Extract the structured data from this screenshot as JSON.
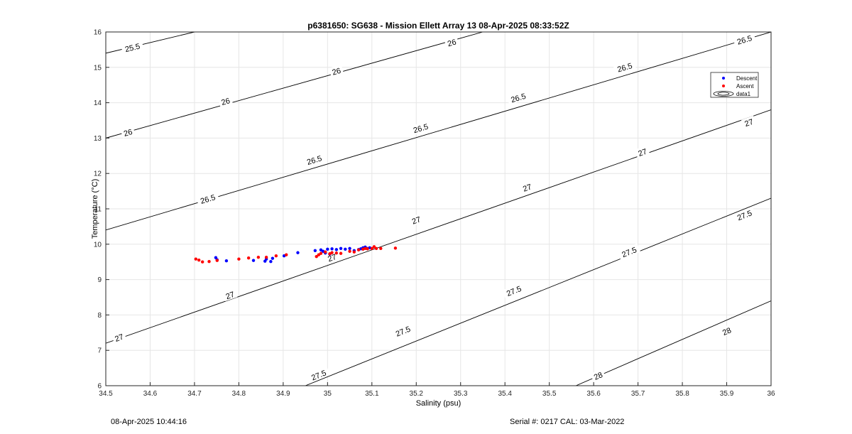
{
  "chart_data": {
    "type": "scatter",
    "title": "p6381650: SG638 - Mission Ellett Array 13 08-Apr-2025 08:33:52Z",
    "xlabel": "Salinity (psu)",
    "ylabel": "Temperature (°C)",
    "xlim": [
      34.5,
      36.0
    ],
    "ylim": [
      6,
      16
    ],
    "x_ticks": [
      "34.5",
      "34.6",
      "34.7",
      "34.8",
      "34.9",
      "35",
      "35.1",
      "35.2",
      "35.3",
      "35.4",
      "35.5",
      "35.6",
      "35.7",
      "35.8",
      "35.9",
      "36"
    ],
    "y_ticks": [
      "6",
      "7",
      "8",
      "9",
      "10",
      "11",
      "12",
      "13",
      "14",
      "15",
      "16"
    ],
    "grid": true,
    "legend_position": "top-right",
    "legend": [
      {
        "label": "Descent",
        "marker": "dot",
        "color": "#0000ff"
      },
      {
        "label": "Ascent",
        "marker": "dot",
        "color": "#ff0000"
      },
      {
        "label": "data1",
        "marker": "contour",
        "color": "#000000"
      }
    ],
    "series": [
      {
        "name": "Descent",
        "color": "#0000ff",
        "points": [
          [
            34.748,
            9.62
          ],
          [
            34.751,
            9.56
          ],
          [
            34.772,
            9.53
          ],
          [
            34.833,
            9.54
          ],
          [
            34.859,
            9.52
          ],
          [
            34.862,
            9.58
          ],
          [
            34.872,
            9.51
          ],
          [
            34.876,
            9.6
          ],
          [
            34.902,
            9.67
          ],
          [
            34.933,
            9.76
          ],
          [
            34.972,
            9.82
          ],
          [
            34.985,
            9.84
          ],
          [
            34.99,
            9.8
          ],
          [
            35.0,
            9.86
          ],
          [
            35.01,
            9.87
          ],
          [
            35.02,
            9.85
          ],
          [
            35.03,
            9.88
          ],
          [
            35.04,
            9.86
          ],
          [
            35.05,
            9.88
          ],
          [
            35.06,
            9.82
          ],
          [
            35.07,
            9.85
          ],
          [
            35.075,
            9.87
          ],
          [
            35.08,
            9.9
          ],
          [
            35.085,
            9.92
          ],
          [
            35.09,
            9.88
          ],
          [
            35.095,
            9.9
          ],
          [
            34.995,
            9.75
          ],
          [
            35.005,
            9.72
          ]
        ]
      },
      {
        "name": "Ascent",
        "color": "#ff0000",
        "points": [
          [
            34.703,
            9.58
          ],
          [
            34.71,
            9.55
          ],
          [
            34.718,
            9.5
          ],
          [
            34.733,
            9.51
          ],
          [
            34.751,
            9.54
          ],
          [
            34.8,
            9.58
          ],
          [
            34.822,
            9.61
          ],
          [
            34.844,
            9.63
          ],
          [
            34.862,
            9.63
          ],
          [
            34.884,
            9.67
          ],
          [
            34.907,
            9.7
          ],
          [
            34.975,
            9.65
          ],
          [
            34.98,
            9.7
          ],
          [
            34.985,
            9.74
          ],
          [
            34.995,
            9.78
          ],
          [
            35.005,
            9.73
          ],
          [
            35.01,
            9.76
          ],
          [
            35.02,
            9.75
          ],
          [
            35.03,
            9.74
          ],
          [
            35.05,
            9.8
          ],
          [
            35.06,
            9.78
          ],
          [
            35.07,
            9.84
          ],
          [
            35.08,
            9.86
          ],
          [
            35.085,
            9.88
          ],
          [
            35.09,
            9.87
          ],
          [
            35.1,
            9.88
          ],
          [
            35.105,
            9.93
          ],
          [
            35.11,
            9.88
          ],
          [
            35.12,
            9.88
          ],
          [
            35.153,
            9.89
          ]
        ]
      }
    ],
    "contours": [
      {
        "label": "25.5",
        "from": [
          34.5,
          15.4
        ],
        "to": [
          34.7,
          16.0
        ],
        "label_at": [
          34.56,
          15.56
        ]
      },
      {
        "label": "26",
        "from": [
          34.5,
          13.0
        ],
        "to": [
          35.35,
          16.0
        ],
        "label_at": [
          34.55,
          13.16
        ]
      },
      {
        "label": "26",
        "from": [
          34.5,
          13.0
        ],
        "to": [
          35.35,
          16.0
        ],
        "label_at": [
          34.77,
          14.04
        ]
      },
      {
        "label": "26",
        "from": [
          34.5,
          13.0
        ],
        "to": [
          35.35,
          16.0
        ],
        "label_at": [
          35.02,
          14.89
        ]
      },
      {
        "label": "26",
        "from": [
          34.5,
          13.0
        ],
        "to": [
          35.35,
          16.0
        ],
        "label_at": [
          35.28,
          15.7
        ]
      },
      {
        "label": "26.5",
        "from": [
          34.5,
          10.4
        ],
        "to": [
          36.0,
          16.0
        ],
        "label_at": [
          34.73,
          11.28
        ]
      },
      {
        "label": "26.5",
        "from": [
          34.5,
          10.4
        ],
        "to": [
          36.0,
          16.0
        ],
        "label_at": [
          34.97,
          12.38
        ]
      },
      {
        "label": "26.5",
        "from": [
          34.5,
          10.4
        ],
        "to": [
          36.0,
          16.0
        ],
        "label_at": [
          35.21,
          13.28
        ]
      },
      {
        "label": "26.5",
        "from": [
          34.5,
          10.4
        ],
        "to": [
          36.0,
          16.0
        ],
        "label_at": [
          35.43,
          14.14
        ]
      },
      {
        "label": "26.5",
        "from": [
          34.5,
          10.4
        ],
        "to": [
          36.0,
          16.0
        ],
        "label_at": [
          35.67,
          15.0
        ]
      },
      {
        "label": "26.5",
        "from": [
          34.5,
          10.4
        ],
        "to": [
          36.0,
          16.0
        ],
        "label_at": [
          35.94,
          15.78
        ]
      },
      {
        "label": "27",
        "from": [
          34.5,
          7.2
        ],
        "to": [
          36.0,
          13.8
        ],
        "label_at": [
          34.53,
          7.36
        ]
      },
      {
        "label": "27",
        "from": [
          34.5,
          7.2
        ],
        "to": [
          36.0,
          13.8
        ],
        "label_at": [
          34.78,
          8.56
        ]
      },
      {
        "label": "27",
        "from": [
          34.5,
          7.2
        ],
        "to": [
          36.0,
          13.8
        ],
        "label_at": [
          35.01,
          9.62
        ]
      },
      {
        "label": "27",
        "from": [
          34.5,
          7.2
        ],
        "to": [
          36.0,
          13.8
        ],
        "label_at": [
          35.2,
          10.68
        ]
      },
      {
        "label": "27",
        "from": [
          34.5,
          7.2
        ],
        "to": [
          36.0,
          13.8
        ],
        "label_at": [
          35.45,
          11.6
        ]
      },
      {
        "label": "27",
        "from": [
          34.5,
          7.2
        ],
        "to": [
          36.0,
          13.8
        ],
        "label_at": [
          35.71,
          12.6
        ]
      },
      {
        "label": "27",
        "from": [
          34.5,
          7.2
        ],
        "to": [
          36.0,
          13.8
        ],
        "label_at": [
          35.95,
          13.44
        ]
      },
      {
        "label": "27.5",
        "from": [
          34.95,
          6.0
        ],
        "to": [
          36.0,
          11.3
        ],
        "label_at": [
          34.98,
          6.3
        ]
      },
      {
        "label": "27.5",
        "from": [
          34.95,
          6.0
        ],
        "to": [
          36.0,
          11.3
        ],
        "label_at": [
          35.17,
          7.54
        ]
      },
      {
        "label": "27.5",
        "from": [
          34.95,
          6.0
        ],
        "to": [
          36.0,
          11.3
        ],
        "label_at": [
          35.42,
          8.68
        ]
      },
      {
        "label": "27.5",
        "from": [
          34.95,
          6.0
        ],
        "to": [
          36.0,
          11.3
        ],
        "label_at": [
          35.68,
          9.78
        ]
      },
      {
        "label": "27.5",
        "from": [
          34.95,
          6.0
        ],
        "to": [
          36.0,
          11.3
        ],
        "label_at": [
          35.94,
          10.82
        ]
      },
      {
        "label": "28",
        "from": [
          35.56,
          6.0
        ],
        "to": [
          36.0,
          8.4
        ],
        "label_at": [
          35.61,
          6.28
        ]
      },
      {
        "label": "28",
        "from": [
          35.56,
          6.0
        ],
        "to": [
          36.0,
          8.4
        ],
        "label_at": [
          35.9,
          7.54
        ]
      }
    ]
  },
  "footer": {
    "timestamp": "08-Apr-2025 10:44:16",
    "serial": "Serial #: 0217  CAL: 03-Mar-2022"
  }
}
